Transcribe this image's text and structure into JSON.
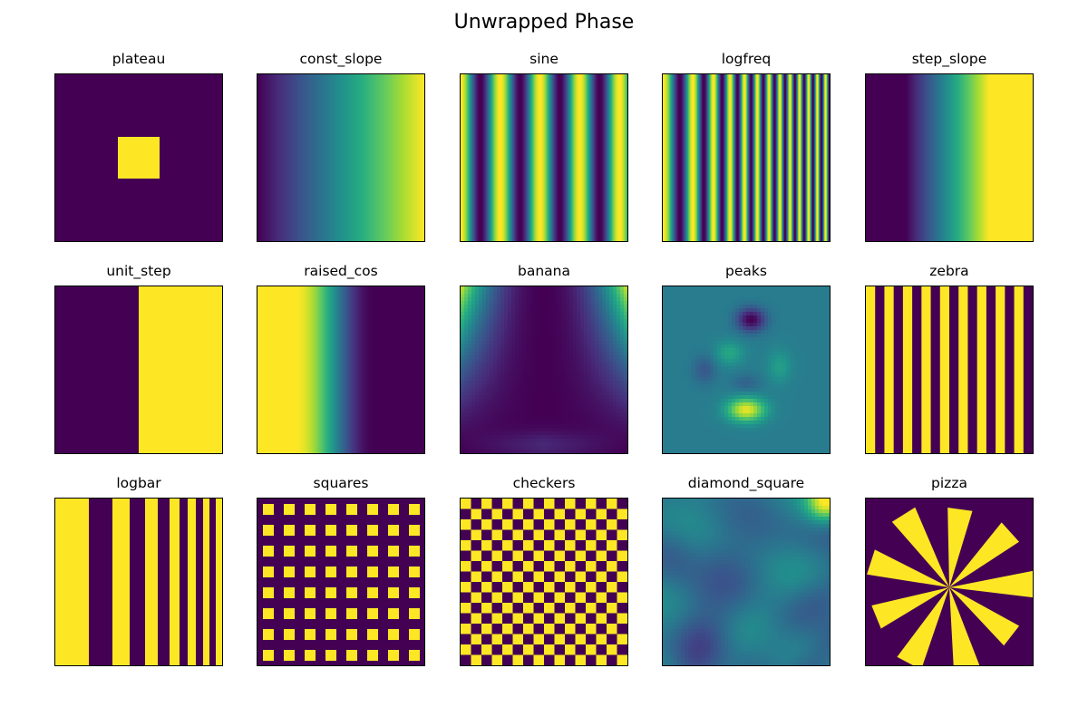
{
  "figure": {
    "title": "Unwrapped Phase"
  },
  "colormap": {
    "name": "viridis",
    "stops": [
      "#440154",
      "#472c7a",
      "#3b518b",
      "#2c718e",
      "#21908d",
      "#27ad81",
      "#5cc863",
      "#aadc32",
      "#fde725"
    ]
  },
  "chart_data": [
    {
      "type": "heatmap",
      "title": "plateau",
      "pattern": "plateau",
      "grid": false
    },
    {
      "type": "heatmap",
      "title": "const_slope",
      "pattern": "const_slope",
      "grid": false
    },
    {
      "type": "heatmap",
      "title": "sine",
      "pattern": "sine",
      "grid": false
    },
    {
      "type": "heatmap",
      "title": "logfreq",
      "pattern": "logfreq",
      "grid": false
    },
    {
      "type": "heatmap",
      "title": "step_slope",
      "pattern": "step_slope",
      "grid": false
    },
    {
      "type": "heatmap",
      "title": "unit_step",
      "pattern": "unit_step",
      "grid": false
    },
    {
      "type": "heatmap",
      "title": "raised_cos",
      "pattern": "raised_cos",
      "grid": false
    },
    {
      "type": "heatmap",
      "title": "banana",
      "pattern": "banana",
      "grid": false
    },
    {
      "type": "heatmap",
      "title": "peaks",
      "pattern": "peaks",
      "grid": false
    },
    {
      "type": "heatmap",
      "title": "zebra",
      "pattern": "zebra",
      "grid": false
    },
    {
      "type": "heatmap",
      "title": "logbar",
      "pattern": "logbar",
      "grid": false
    },
    {
      "type": "heatmap",
      "title": "squares",
      "pattern": "squares",
      "grid": false
    },
    {
      "type": "heatmap",
      "title": "checkers",
      "pattern": "checkers",
      "grid": false
    },
    {
      "type": "heatmap",
      "title": "diamond_square",
      "pattern": "diamond_square",
      "grid": false
    },
    {
      "type": "heatmap",
      "title": "pizza",
      "pattern": "pizza",
      "grid": false
    }
  ]
}
